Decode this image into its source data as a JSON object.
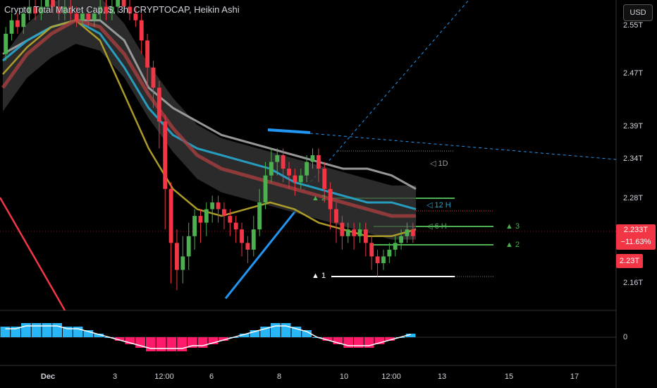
{
  "header": {
    "title": "Crypto Total Market Cap, $, 3h, CRYPTOCAP, Heikin Ashi",
    "currency_button": "USD"
  },
  "price_tag": {
    "price": "2.233T",
    "change": "−11.63%",
    "secondary": "2.23T"
  },
  "timeframe_labels": [
    "◁ 1D",
    "◁ 12 H",
    "◁ 6 H"
  ],
  "level_labels_left": [
    "▲ 2",
    "▲ 1"
  ],
  "level_labels_right": [
    "▲ 3",
    "▲ 2"
  ],
  "colors": {
    "up": "#4caf50",
    "down": "#f23645",
    "macd_pos": "#29b6f6",
    "macd_neg": "#ff1a6b",
    "trend_blue": "#2196f3",
    "ma_1d": "#9e9e9e",
    "ma_12h": "#26a3c7",
    "ma_6h": "#b5a22a",
    "ema_red": "#a83e3e"
  },
  "chart_data": {
    "type": "candlestick",
    "title": "Crypto Total Market Cap, $, 3h, CRYPTOCAP, Heikin Ashi",
    "y_axis": {
      "ticks": [
        "2.55T",
        "2.47T",
        "2.39T",
        "2.34T",
        "2.28T",
        "2.16T"
      ],
      "range": [
        2.12,
        2.58
      ],
      "unit": "T USD"
    },
    "x_axis": {
      "ticks": [
        "Dec",
        "3",
        "12:00",
        "6",
        "8",
        "10",
        "12:00",
        "13",
        "15",
        "17"
      ]
    },
    "candles": [
      [
        2.5,
        2.53,
        2.49,
        2.54
      ],
      [
        2.53,
        2.55,
        2.52,
        2.56
      ],
      [
        2.55,
        2.54,
        2.53,
        2.56
      ],
      [
        2.54,
        2.56,
        2.53,
        2.57
      ],
      [
        2.56,
        2.57,
        2.55,
        2.58
      ],
      [
        2.57,
        2.56,
        2.55,
        2.58
      ],
      [
        2.56,
        2.57,
        2.55,
        2.58
      ],
      [
        2.57,
        2.58,
        2.56,
        2.58
      ],
      [
        2.58,
        2.57,
        2.56,
        2.58
      ],
      [
        2.57,
        2.56,
        2.55,
        2.58
      ],
      [
        2.56,
        2.57,
        2.55,
        2.58
      ],
      [
        2.57,
        2.56,
        2.55,
        2.58
      ],
      [
        2.56,
        2.55,
        2.54,
        2.57
      ],
      [
        2.55,
        2.56,
        2.54,
        2.57
      ],
      [
        2.56,
        2.55,
        2.54,
        2.57
      ],
      [
        2.55,
        2.56,
        2.54,
        2.57
      ],
      [
        2.56,
        2.57,
        2.55,
        2.58
      ],
      [
        2.57,
        2.56,
        2.55,
        2.58
      ],
      [
        2.56,
        2.57,
        2.55,
        2.58
      ],
      [
        2.57,
        2.58,
        2.56,
        2.58
      ],
      [
        2.58,
        2.57,
        2.56,
        2.58
      ],
      [
        2.57,
        2.56,
        2.55,
        2.58
      ],
      [
        2.56,
        2.55,
        2.54,
        2.57
      ],
      [
        2.55,
        2.52,
        2.5,
        2.56
      ],
      [
        2.52,
        2.48,
        2.45,
        2.53
      ],
      [
        2.48,
        2.45,
        2.42,
        2.49
      ],
      [
        2.45,
        2.4,
        2.36,
        2.46
      ],
      [
        2.4,
        2.3,
        2.24,
        2.41
      ],
      [
        2.3,
        2.22,
        2.16,
        2.31
      ],
      [
        2.22,
        2.18,
        2.15,
        2.24
      ],
      [
        2.18,
        2.2,
        2.16,
        2.23
      ],
      [
        2.2,
        2.23,
        2.18,
        2.25
      ],
      [
        2.23,
        2.26,
        2.21,
        2.27
      ],
      [
        2.26,
        2.25,
        2.22,
        2.27
      ],
      [
        2.25,
        2.27,
        2.23,
        2.28
      ],
      [
        2.27,
        2.28,
        2.25,
        2.29
      ],
      [
        2.28,
        2.27,
        2.25,
        2.29
      ],
      [
        2.27,
        2.26,
        2.24,
        2.28
      ],
      [
        2.26,
        2.25,
        2.23,
        2.27
      ],
      [
        2.25,
        2.24,
        2.22,
        2.26
      ],
      [
        2.24,
        2.22,
        2.2,
        2.25
      ],
      [
        2.22,
        2.21,
        2.19,
        2.23
      ],
      [
        2.21,
        2.24,
        2.2,
        2.26
      ],
      [
        2.24,
        2.28,
        2.23,
        2.3
      ],
      [
        2.28,
        2.32,
        2.27,
        2.34
      ],
      [
        2.32,
        2.34,
        2.31,
        2.36
      ],
      [
        2.34,
        2.35,
        2.32,
        2.36
      ],
      [
        2.35,
        2.33,
        2.31,
        2.36
      ],
      [
        2.33,
        2.32,
        2.3,
        2.34
      ],
      [
        2.32,
        2.31,
        2.29,
        2.33
      ],
      [
        2.31,
        2.32,
        2.3,
        2.33
      ],
      [
        2.32,
        2.34,
        2.31,
        2.35
      ],
      [
        2.34,
        2.35,
        2.33,
        2.36
      ],
      [
        2.35,
        2.33,
        2.31,
        2.36
      ],
      [
        2.33,
        2.3,
        2.28,
        2.34
      ],
      [
        2.3,
        2.27,
        2.24,
        2.31
      ],
      [
        2.27,
        2.25,
        2.22,
        2.28
      ],
      [
        2.25,
        2.23,
        2.21,
        2.26
      ],
      [
        2.23,
        2.24,
        2.22,
        2.25
      ],
      [
        2.24,
        2.23,
        2.21,
        2.25
      ],
      [
        2.23,
        2.24,
        2.22,
        2.25
      ],
      [
        2.24,
        2.22,
        2.2,
        2.25
      ],
      [
        2.22,
        2.2,
        2.18,
        2.23
      ],
      [
        2.2,
        2.19,
        2.17,
        2.21
      ],
      [
        2.19,
        2.2,
        2.18,
        2.21
      ],
      [
        2.2,
        2.21,
        2.19,
        2.22
      ],
      [
        2.21,
        2.22,
        2.2,
        2.23
      ],
      [
        2.22,
        2.23,
        2.21,
        2.24
      ],
      [
        2.23,
        2.24,
        2.22,
        2.25
      ],
      [
        2.24,
        2.23,
        2.22,
        2.25
      ]
    ],
    "series": [
      {
        "values": [
          2.5,
          2.52,
          2.54,
          2.55,
          2.55,
          2.52,
          2.45,
          2.42,
          2.4,
          2.38,
          2.37,
          2.36,
          2.35,
          2.34,
          2.33,
          2.33,
          2.32,
          2.3
        ]
      },
      {
        "values": [
          2.49,
          2.52,
          2.54,
          2.55,
          2.53,
          2.48,
          2.42,
          2.38,
          2.36,
          2.35,
          2.34,
          2.33,
          2.31,
          2.3,
          2.29,
          2.28,
          2.28,
          2.27
        ]
      },
      {
        "values": [
          2.47,
          2.51,
          2.54,
          2.55,
          2.52,
          2.44,
          2.36,
          2.3,
          2.27,
          2.26,
          2.27,
          2.28,
          2.27,
          2.25,
          2.24,
          2.23,
          2.23,
          2.24
        ]
      },
      {
        "values": [
          2.45,
          2.5,
          2.53,
          2.55,
          2.54,
          2.5,
          2.44,
          2.39,
          2.35,
          2.33,
          2.32,
          2.31,
          2.3,
          2.29,
          2.28,
          2.27,
          2.26,
          2.26
        ]
      }
    ],
    "macd": {
      "histogram": [
        3,
        3,
        4,
        4,
        4,
        4,
        3,
        3,
        2,
        1,
        0,
        -1,
        -2,
        -3,
        -4,
        -4,
        -4,
        -4,
        -3,
        -3,
        -2,
        -1,
        0,
        1,
        2,
        3,
        4,
        4,
        3,
        2,
        0,
        -1,
        -2,
        -3,
        -3,
        -3,
        -2,
        -1,
        0,
        1
      ]
    }
  }
}
